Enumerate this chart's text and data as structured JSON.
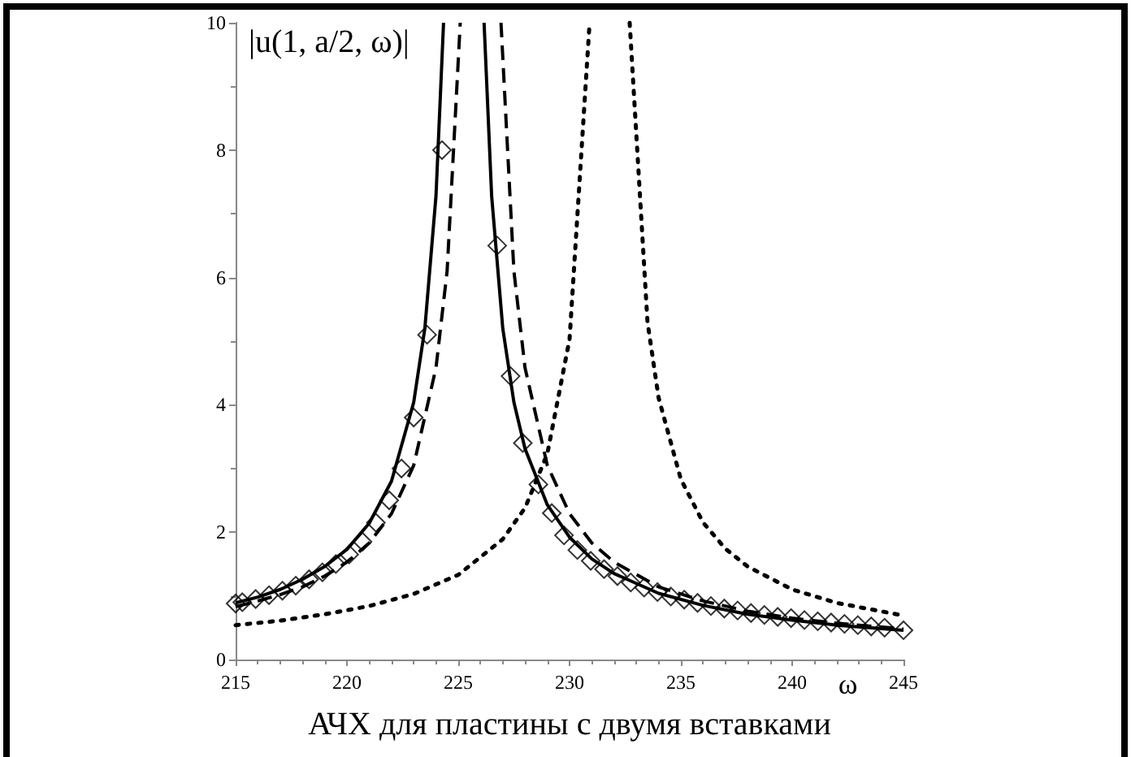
{
  "chart_data": {
    "type": "line",
    "title": "АЧХ для пластины с двумя вставками",
    "xlabel": "ω",
    "ylabel": "|u(1, a/2, ω)|",
    "xlim": [
      215,
      245
    ],
    "ylim": [
      0,
      10
    ],
    "xticks": [
      215,
      220,
      225,
      230,
      235,
      240,
      245
    ],
    "yticks": [
      0,
      2,
      4,
      6,
      8,
      10
    ],
    "series": [
      {
        "color": "#000000",
        "line_style": "solid",
        "marker": "none",
        "x": [
          215,
          216,
          217,
          218,
          219,
          220,
          221,
          222,
          223,
          223.5,
          224,
          224.34,
          225.25,
          226.16,
          226.5,
          227,
          227.5,
          228,
          229,
          230,
          231,
          232,
          234,
          236,
          238,
          240,
          242,
          245
        ],
        "values": [
          0.89,
          0.98,
          1.1,
          1.26,
          1.46,
          1.73,
          2.14,
          2.8,
          4.04,
          5.2,
          7.28,
          10,
          null,
          10,
          7.28,
          5.2,
          4.04,
          3.31,
          2.43,
          1.92,
          1.58,
          1.35,
          1.04,
          0.85,
          0.71,
          0.62,
          0.54,
          0.46
        ]
      },
      {
        "color": "#000000",
        "line_style": "dashed",
        "marker": "none",
        "x": [
          215,
          216,
          217,
          218,
          219,
          220,
          221,
          222,
          223,
          224,
          224.5,
          225.09,
          226,
          226.92,
          227.5,
          228,
          229,
          230,
          231,
          232,
          234,
          236,
          238,
          240,
          242,
          245
        ],
        "values": [
          0.83,
          0.92,
          1.02,
          1.14,
          1.31,
          1.53,
          1.83,
          2.29,
          3.05,
          4.58,
          6.1,
          10,
          null,
          10,
          6.1,
          4.58,
          3.05,
          2.29,
          1.83,
          1.53,
          1.14,
          0.92,
          0.76,
          0.65,
          0.57,
          0.48
        ]
      },
      {
        "color": "#000000",
        "line_style": "dotted",
        "marker": "none",
        "x": [
          215,
          217,
          219,
          221,
          223,
          225,
          227,
          228,
          229,
          230,
          230.9,
          231.8,
          232.7,
          233.5,
          234,
          235,
          236,
          237,
          238,
          240,
          242,
          245
        ],
        "values": [
          0.54,
          0.61,
          0.71,
          0.84,
          1.03,
          1.33,
          1.89,
          2.38,
          3.23,
          5.03,
          10,
          null,
          10,
          5.3,
          4.11,
          2.83,
          2.15,
          1.74,
          1.46,
          1.1,
          0.89,
          0.69
        ]
      },
      {
        "type": "scatter",
        "color": "#000000",
        "marker": "diamond",
        "x": [
          215,
          215.3,
          215.9,
          216.5,
          217.1,
          217.7,
          218.3,
          218.9,
          219.5,
          220.1,
          220.7,
          221.3,
          221.9,
          222.45,
          223,
          223.6,
          224.27,
          226.75,
          227.35,
          227.9,
          228.6,
          229.2,
          229.75,
          230.35,
          230.95,
          231.55,
          232.15,
          232.75,
          233.35,
          233.95,
          234.55,
          235.15,
          235.75,
          236.35,
          236.95,
          237.55,
          238.15,
          238.75,
          239.35,
          239.95,
          240.55,
          241.15,
          241.75,
          242.35,
          242.95,
          243.55,
          244.15,
          245
        ],
        "values": [
          0.88,
          0.9,
          0.95,
          1.01,
          1.08,
          1.16,
          1.26,
          1.37,
          1.5,
          1.65,
          1.85,
          2.15,
          2.5,
          3,
          3.8,
          5.1,
          8,
          6.5,
          4.45,
          3.4,
          2.75,
          2.3,
          1.95,
          1.72,
          1.55,
          1.42,
          1.31,
          1.21,
          1.13,
          1.06,
          0.99,
          0.94,
          0.89,
          0.84,
          0.8,
          0.77,
          0.73,
          0.7,
          0.67,
          0.65,
          0.62,
          0.6,
          0.58,
          0.56,
          0.54,
          0.52,
          0.5,
          0.46
        ]
      }
    ]
  }
}
